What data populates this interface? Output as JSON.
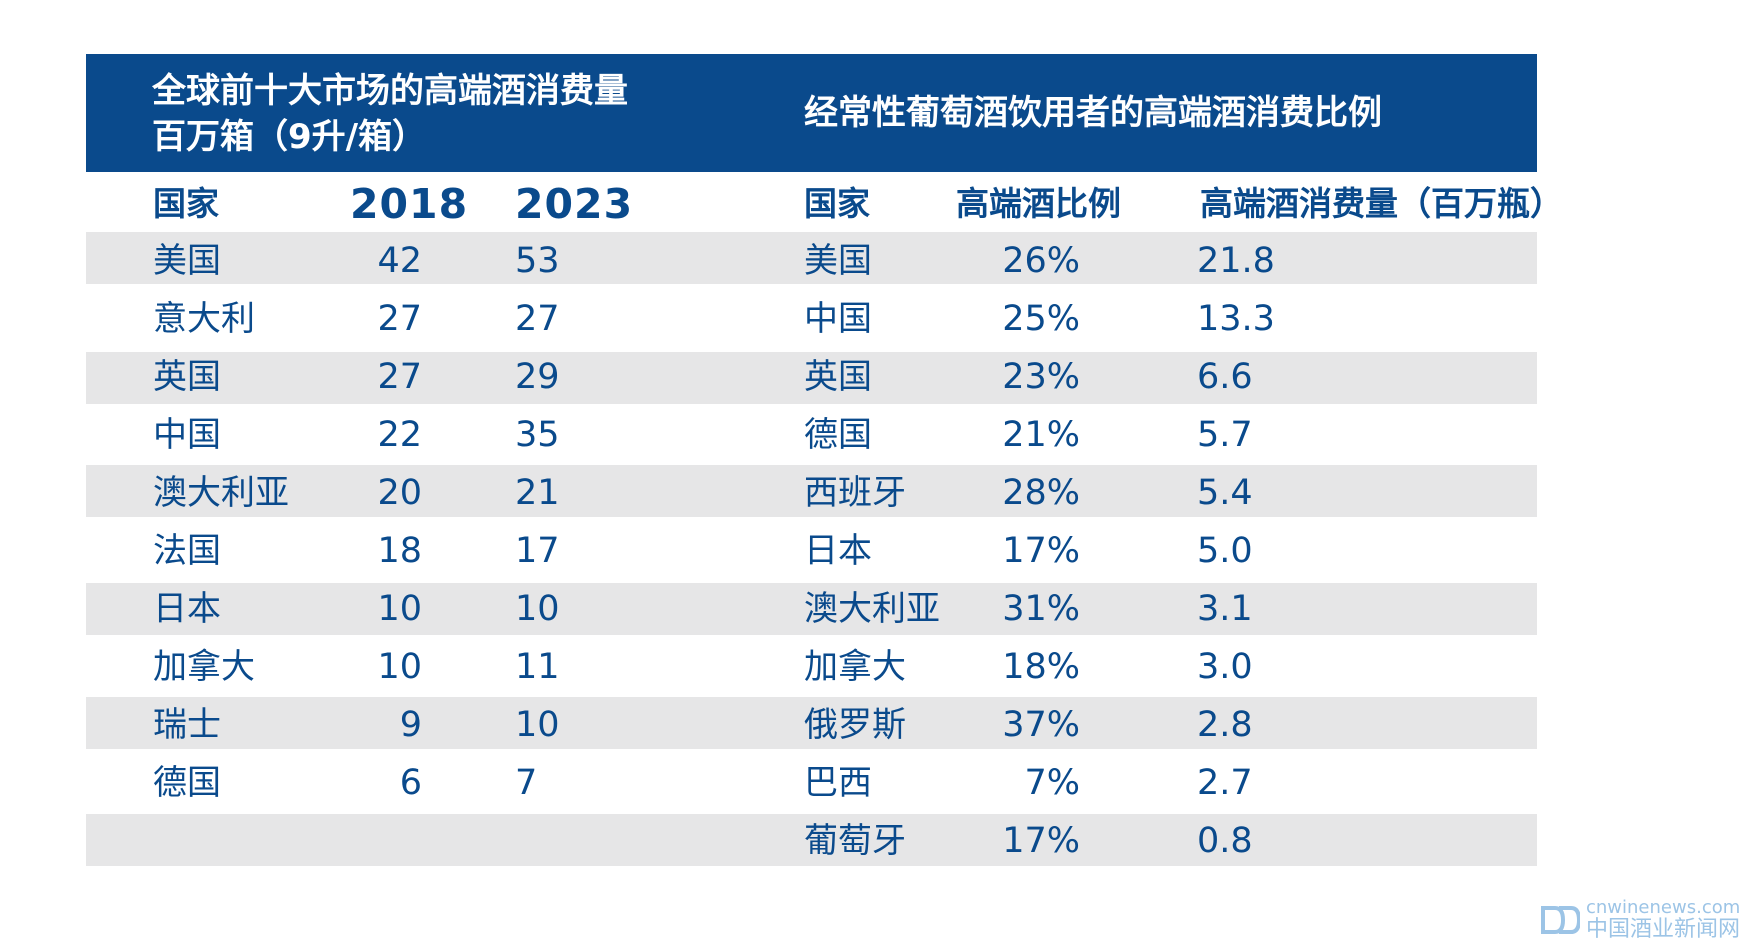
{
  "left_table": {
    "title_line1": "全球前十大市场的高端酒消费量",
    "title_line2": "百万箱（9升/箱）",
    "headers": [
      "国家",
      "2018",
      "2023"
    ]
  },
  "right_table": {
    "title": "经常性葡萄酒饮用者的高端酒消费比例",
    "headers": [
      "国家",
      "高端酒比例",
      "高端酒消费量（百万瓶）"
    ]
  },
  "chart_data": [
    {
      "type": "table",
      "title": "全球前十大市场的高端酒消费量 百万箱（9升/箱）",
      "columns": [
        "国家",
        "2018",
        "2023"
      ],
      "rows": [
        [
          "美国",
          "42",
          "53"
        ],
        [
          "意大利",
          "27",
          "27"
        ],
        [
          "英国",
          "27",
          "29"
        ],
        [
          "中国",
          "22",
          "35"
        ],
        [
          "澳大利亚",
          "20",
          "21"
        ],
        [
          "法国",
          "18",
          "17"
        ],
        [
          "日本",
          "10",
          "10"
        ],
        [
          "加拿大",
          "10",
          "11"
        ],
        [
          "瑞士",
          "9",
          "10"
        ],
        [
          "德国",
          "6",
          "7"
        ]
      ]
    },
    {
      "type": "table",
      "title": "经常性葡萄酒饮用者的高端酒消费比例",
      "columns": [
        "国家",
        "高端酒比例",
        "高端酒消费量（百万瓶）"
      ],
      "rows": [
        [
          "美国",
          "26%",
          "21.8"
        ],
        [
          "中国",
          "25%",
          "13.3"
        ],
        [
          "英国",
          "23%",
          "6.6"
        ],
        [
          "德国",
          "21%",
          "5.7"
        ],
        [
          "西班牙",
          "28%",
          "5.4"
        ],
        [
          "日本",
          "17%",
          "5.0"
        ],
        [
          "澳大利亚",
          "31%",
          "3.1"
        ],
        [
          "加拿大",
          "18%",
          "3.0"
        ],
        [
          "俄罗斯",
          "37%",
          "2.8"
        ],
        [
          "巴西",
          "7%",
          "2.7"
        ],
        [
          "葡萄牙",
          "17%",
          "0.8"
        ]
      ]
    }
  ],
  "watermark": {
    "url": "cnwinenews.com",
    "name": "中国酒业新闻网"
  },
  "colors": {
    "header_band": "#0a4a8c",
    "text": "#0a4a8c",
    "stripe": "#e6e6e7",
    "watermark": "#9cc4e6"
  }
}
